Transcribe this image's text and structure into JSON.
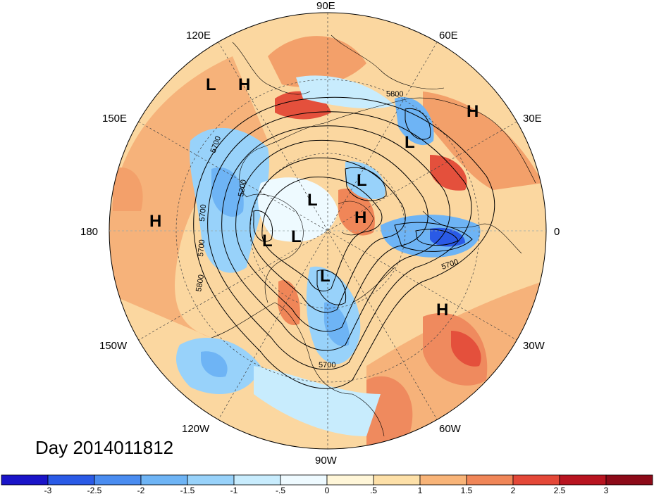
{
  "date_label": "Day 2014011812",
  "longitude_labels": {
    "lon_90e": "90E",
    "lon_60e": "60E",
    "lon_30e": "30E",
    "lon_0": "0",
    "lon_30w": "30W",
    "lon_60w": "60W",
    "lon_90w": "90W",
    "lon_120w": "120W",
    "lon_150w": "150W",
    "lon_180": "180",
    "lon_150e": "150E",
    "lon_120e": "120E"
  },
  "pressure_centers": [
    {
      "type": "L",
      "name": "low-center-1"
    },
    {
      "type": "H",
      "name": "high-center-1"
    },
    {
      "type": "H",
      "name": "high-center-2"
    },
    {
      "type": "L",
      "name": "low-center-2"
    },
    {
      "type": "L",
      "name": "low-center-3"
    },
    {
      "type": "L",
      "name": "low-center-4"
    },
    {
      "type": "H",
      "name": "high-center-3"
    },
    {
      "type": "H",
      "name": "high-center-4"
    },
    {
      "type": "L",
      "name": "low-center-5"
    },
    {
      "type": "L",
      "name": "low-center-6"
    },
    {
      "type": "L",
      "name": "low-center-7"
    },
    {
      "type": "H",
      "name": "high-center-5"
    }
  ],
  "contour_labels": [
    "5800",
    "5700",
    "5200",
    "5700",
    "5700",
    "5800",
    "5700",
    "5700"
  ],
  "colorbar": {
    "ticks": [
      "-3",
      "-2.5",
      "-2",
      "-1.5",
      "-1",
      "-.5",
      "0",
      ".5",
      "1",
      "1.5",
      "2",
      "2.5",
      "3"
    ],
    "colors": [
      "#1a14c8",
      "#2a5ae6",
      "#4a8cf0",
      "#6eb4f5",
      "#98d2fa",
      "#c8ecfd",
      "#eefaff",
      "#fff6d8",
      "#fde0a8",
      "#f8b478",
      "#f08658",
      "#e44838",
      "#b81420",
      "#8c0a18"
    ]
  }
}
